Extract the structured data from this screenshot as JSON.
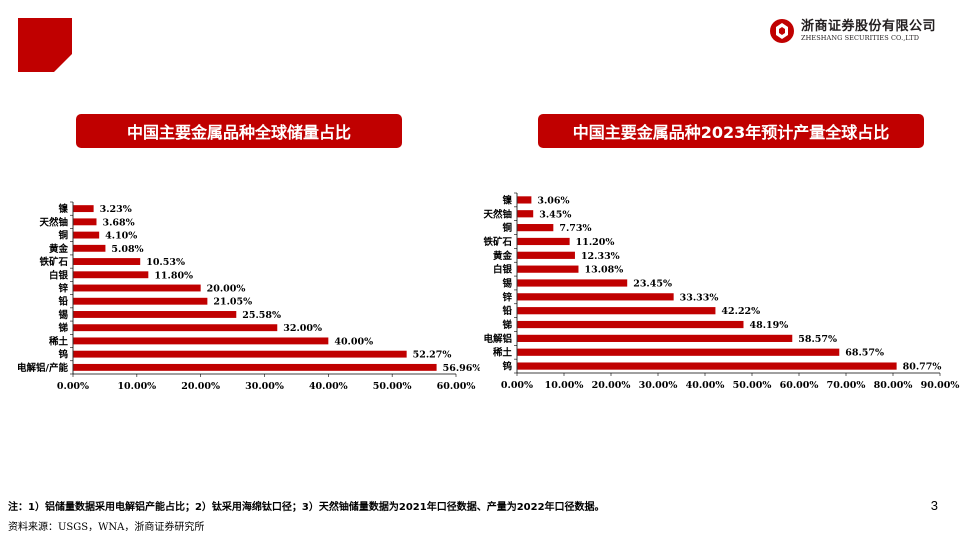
{
  "brand": {
    "name_cn": "浙商证券股份有限公司",
    "name_en": "ZHESHANG SECURITIES CO.,LTD",
    "accent": "#c00000"
  },
  "chart_data": [
    {
      "type": "bar",
      "orientation": "horizontal",
      "title": "中国主要金属品种全球储量占比",
      "categories": [
        "镍",
        "天然铀",
        "铜",
        "黄金",
        "铁矿石",
        "白银",
        "锌",
        "铅",
        "锡",
        "锑",
        "稀土",
        "钨",
        "电解铝/产能"
      ],
      "values": [
        3.23,
        3.68,
        4.1,
        5.08,
        10.53,
        11.8,
        20.0,
        21.05,
        25.58,
        32.0,
        40.0,
        52.27,
        56.96
      ],
      "value_labels": [
        "3.23%",
        "3.68%",
        "4.10%",
        "5.08%",
        "10.53%",
        "11.80%",
        "20.00%",
        "21.05%",
        "25.58%",
        "32.00%",
        "40.00%",
        "52.27%",
        "56.96%"
      ],
      "xlim": [
        0,
        60
      ],
      "xticks": [
        "0.00%",
        "10.00%",
        "20.00%",
        "30.00%",
        "40.00%",
        "50.00%",
        "60.00%"
      ],
      "xlabel": "",
      "ylabel": "",
      "grid": false,
      "color": "#c00000"
    },
    {
      "type": "bar",
      "orientation": "horizontal",
      "title": "中国主要金属品种2023年预计产量全球占比",
      "categories": [
        "镍",
        "天然铀",
        "铜",
        "铁矿石",
        "黄金",
        "白银",
        "锡",
        "锌",
        "铅",
        "锑",
        "电解铝",
        "稀土",
        "钨"
      ],
      "values": [
        3.06,
        3.45,
        7.73,
        11.2,
        12.33,
        13.08,
        23.45,
        33.33,
        42.22,
        48.19,
        58.57,
        68.57,
        80.77
      ],
      "value_labels": [
        "3.06%",
        "3.45%",
        "7.73%",
        "11.20%",
        "12.33%",
        "13.08%",
        "23.45%",
        "33.33%",
        "42.22%",
        "48.19%",
        "58.57%",
        "68.57%",
        "80.77%"
      ],
      "xlim": [
        0,
        90
      ],
      "xticks": [
        "0.00%",
        "10.00%",
        "20.00%",
        "30.00%",
        "40.00%",
        "50.00%",
        "60.00%",
        "70.00%",
        "80.00%",
        "90.00%"
      ],
      "xlabel": "",
      "ylabel": "",
      "grid": false,
      "color": "#c00000"
    }
  ],
  "footnote": "注：1）铝储量数据采用电解铝产能占比；2）钛采用海绵钛口径；3）天然铀储量数据为2021年口径数据、产量为2022年口径数据。",
  "source": "资料来源：USGS，WNA，浙商证券研究所",
  "page_number": "3"
}
